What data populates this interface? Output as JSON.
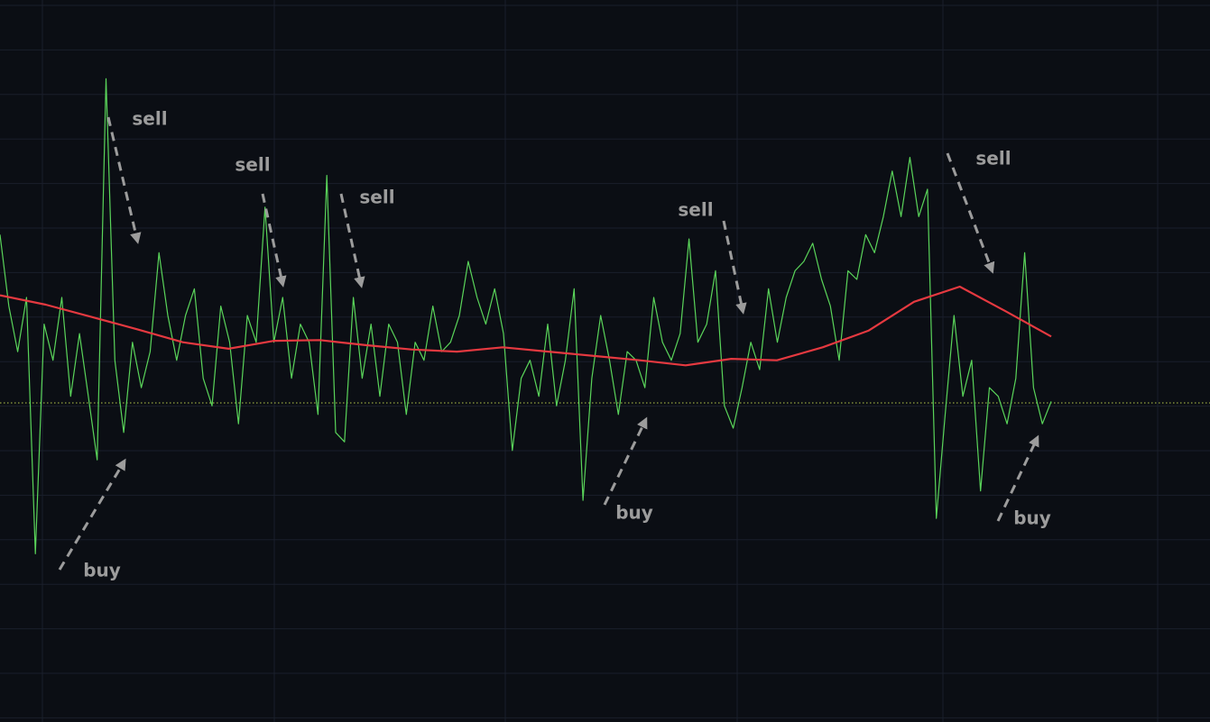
{
  "chart_data": {
    "type": "line",
    "ylim": [
      0,
      100
    ],
    "grid": true,
    "series": [
      {
        "color": "#5ad45a",
        "width": 1.2,
        "values": [
          67.5,
          57.6,
          51.3,
          58.8,
          23.3,
          55.1,
          50.1,
          58.8,
          45.1,
          53.8,
          45.1,
          36.3,
          89.1,
          50.1,
          40.1,
          52.6,
          46.3,
          51.3,
          65.0,
          56.3,
          50.1,
          56.3,
          60.0,
          47.6,
          43.8,
          57.6,
          52.6,
          41.3,
          56.3,
          52.6,
          71.3,
          52.6,
          58.8,
          47.6,
          55.1,
          52.6,
          42.6,
          75.7,
          40.1,
          38.8,
          58.8,
          47.6,
          55.1,
          45.1,
          55.1,
          52.6,
          42.6,
          52.6,
          50.1,
          57.6,
          51.3,
          52.6,
          56.3,
          63.8,
          58.8,
          55.1,
          60.0,
          53.8,
          37.6,
          47.6,
          50.1,
          45.1,
          55.1,
          43.8,
          50.1,
          60.0,
          30.7,
          47.6,
          56.3,
          50.1,
          42.6,
          51.3,
          50.1,
          46.3,
          58.8,
          52.6,
          50.1,
          53.8,
          66.9,
          52.6,
          55.1,
          62.5,
          43.8,
          40.7,
          46.3,
          52.6,
          48.8,
          60.0,
          52.6,
          58.8,
          62.5,
          63.8,
          66.3,
          61.3,
          57.6,
          50.1,
          62.5,
          61.3,
          67.5,
          65.0,
          70.0,
          76.3,
          70.0,
          78.2,
          70.0,
          73.8,
          28.2,
          42.6,
          56.3,
          45.1,
          50.1,
          32.0,
          46.3,
          45.1,
          41.3,
          47.6,
          65.0,
          46.3,
          41.3,
          44.4
        ]
      },
      {
        "color": "#e53940",
        "width": 2.2,
        "values": [
          59.1,
          57.8,
          56.1,
          54.4,
          52.6,
          51.7,
          52.8,
          52.9,
          52.2,
          51.6,
          51.3,
          51.9,
          51.3,
          50.7,
          50.1,
          49.4,
          50.3,
          50.1,
          51.9,
          54.2,
          58.2,
          60.3,
          56.9,
          53.4
        ]
      }
    ],
    "reference_line": 44.2,
    "annotations": [
      "sell",
      "sell",
      "sell",
      "sell",
      "sell",
      "buy",
      "buy",
      "buy"
    ]
  }
}
